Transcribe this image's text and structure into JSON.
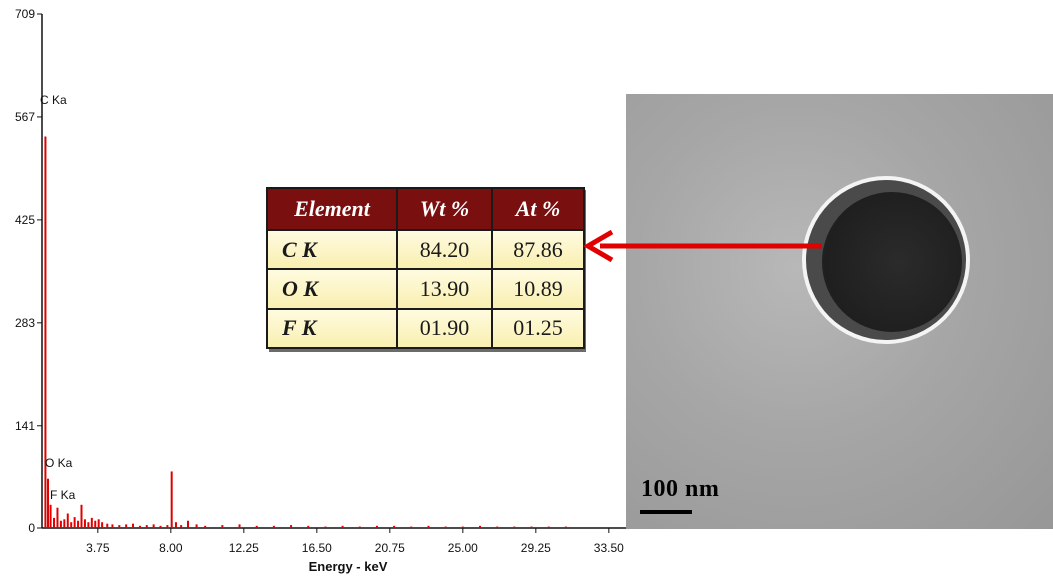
{
  "chart_data": {
    "type": "bar",
    "title": "",
    "xlabel": "Energy - keV",
    "ylabel": "",
    "xlim": [
      0.5,
      34.5
    ],
    "ylim": [
      0,
      709
    ],
    "x_ticks": [
      "3.75",
      "8.00",
      "12.25",
      "16.50",
      "20.75",
      "25.00",
      "29.25",
      "33.50"
    ],
    "y_ticks": [
      "0",
      "141",
      "283",
      "425",
      "567",
      "709"
    ],
    "bar_color": "#e00000",
    "peak_labels": [
      {
        "label": "C Ka",
        "x": 0.28,
        "y": 540
      },
      {
        "label": "O Ka",
        "x": 0.52,
        "y": 68
      },
      {
        "label": "F Ka",
        "x": 0.68,
        "y": 32
      }
    ],
    "series": [
      {
        "x": [
          0.7,
          0.85,
          1.0,
          1.2,
          1.4,
          1.6,
          1.8,
          2.0,
          2.2,
          2.4,
          2.6,
          2.8,
          3.0,
          3.2,
          3.4,
          3.6,
          3.8,
          4.0,
          4.3,
          4.6,
          5.0,
          5.4,
          5.8,
          6.2,
          6.6,
          7.0,
          7.4,
          7.8,
          8.05,
          8.3,
          8.6,
          9.0,
          9.5,
          10.0,
          11.0,
          12.0,
          13.0,
          14.0,
          15.0,
          16.0,
          17.0,
          18.0,
          19.0,
          20.0,
          21.0,
          22.0,
          23.0,
          24.0,
          25.0,
          26.0,
          27.0,
          28.0,
          29.0,
          30.0,
          31.0
        ],
        "y": [
          540,
          68,
          32,
          14,
          28,
          10,
          12,
          20,
          8,
          15,
          10,
          32,
          12,
          8,
          14,
          10,
          12,
          8,
          6,
          5,
          4,
          5,
          6,
          3,
          4,
          5,
          3,
          4,
          78,
          8,
          4,
          10,
          5,
          3,
          4,
          5,
          3,
          3,
          4,
          3,
          2,
          3,
          2,
          3,
          3,
          2,
          3,
          2,
          2,
          3,
          2,
          2,
          2,
          2,
          2
        ]
      }
    ]
  },
  "table": {
    "headers": [
      "Element",
      "Wt %",
      "At %"
    ],
    "rows": [
      [
        "C K",
        "84.20",
        "87.86"
      ],
      [
        "O K",
        "13.90",
        "10.89"
      ],
      [
        "F K",
        "01.90",
        "01.25"
      ]
    ],
    "header_color": "#7a0f0f"
  },
  "tem_image": {
    "scale_label": "100 nm"
  },
  "arrow_color": "#e00000"
}
